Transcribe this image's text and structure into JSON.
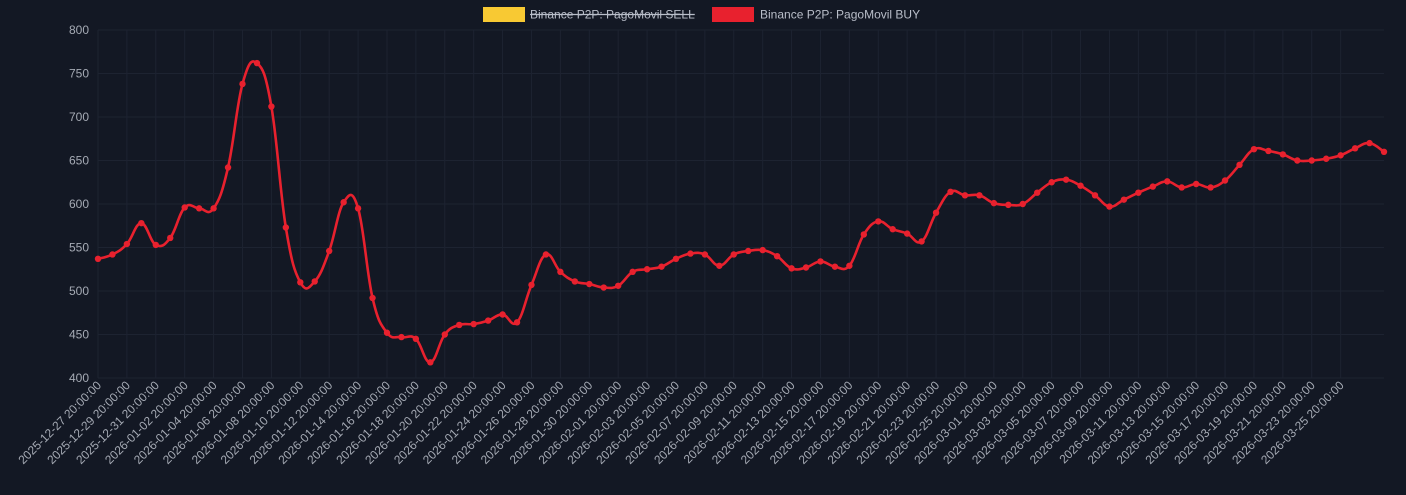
{
  "chart_data": {
    "type": "line",
    "legend_position": "top-center",
    "grid": true,
    "ylim": [
      400,
      800
    ],
    "y_ticks": [
      "800",
      "750",
      "700",
      "650",
      "600",
      "550",
      "500",
      "450",
      "400"
    ],
    "x_tick_labels": [
      "2025-12-27 20:00:00",
      "2025-12-29 20:00:00",
      "2025-12-31 20:00:00",
      "2026-01-02 20:00:00",
      "2026-01-04 20:00:00",
      "2026-01-06 20:00:00",
      "2026-01-08 20:00:00",
      "2026-01-10 20:00:00",
      "2026-01-12 20:00:00",
      "2026-01-14 20:00:00",
      "2026-01-16 20:00:00",
      "2026-01-18 20:00:00",
      "2026-01-20 20:00:00",
      "2026-01-22 20:00:00",
      "2026-01-24 20:00:00",
      "2026-01-26 20:00:00",
      "2026-01-28 20:00:00",
      "2026-01-30 20:00:00",
      "2026-02-01 20:00:00",
      "2026-02-03 20:00:00",
      "2026-02-05 20:00:00",
      "2026-02-07 20:00:00",
      "2026-02-09 20:00:00",
      "2026-02-11 20:00:00",
      "2026-02-13 20:00:00",
      "2026-02-15 20:00:00",
      "2026-02-17 20:00:00",
      "2026-02-19 20:00:00",
      "2026-02-21 20:00:00",
      "2026-02-23 20:00:00",
      "2026-02-25 20:00:00",
      "2026-03-01 20:00:00",
      "2026-03-03 20:00:00",
      "2026-03-05 20:00:00",
      "2026-03-07 20:00:00",
      "2026-03-09 20:00:00",
      "2026-03-11 20:00:00",
      "2026-03-13 20:00:00",
      "2026-03-15 20:00:00",
      "2026-03-17 20:00:00",
      "2026-03-19 20:00:00",
      "2026-03-21 20:00:00",
      "2026-03-23 20:00:00",
      "2026-03-25 20:00:00"
    ],
    "series": [
      {
        "name": "Binance P2P: PagoMovil SELL",
        "color": "#f8c933",
        "hidden": true,
        "values": []
      },
      {
        "name": "Binance P2P: PagoMovil BUY",
        "color": "#e8212e",
        "hidden": false,
        "values": [
          537,
          542,
          554,
          578,
          553,
          561,
          596,
          595,
          595,
          642,
          738,
          762,
          712,
          573,
          510,
          511,
          546,
          602,
          595,
          492,
          452,
          447,
          445,
          418,
          450,
          461,
          462,
          466,
          473,
          464,
          507,
          542,
          522,
          511,
          508,
          504,
          506,
          522,
          525,
          528,
          537,
          543,
          542,
          529,
          542,
          546,
          547,
          540,
          526,
          527,
          534,
          528,
          529,
          565,
          580,
          571,
          566,
          557,
          590,
          614,
          610,
          610,
          601,
          599,
          600,
          613,
          625,
          628,
          621,
          610,
          597,
          605,
          613,
          620,
          626,
          619,
          623,
          619,
          627,
          645,
          663,
          661,
          657,
          650,
          650,
          652,
          656,
          664,
          670,
          660
        ]
      }
    ]
  }
}
